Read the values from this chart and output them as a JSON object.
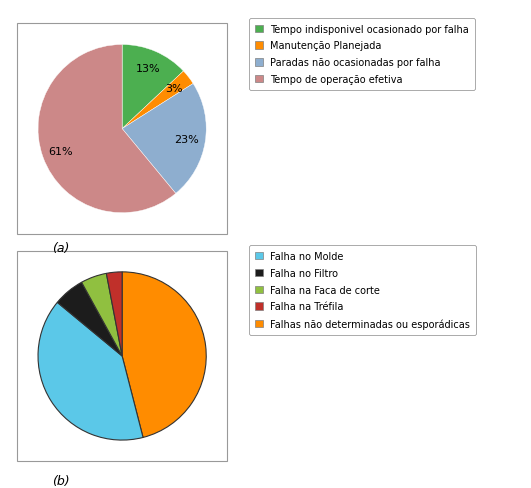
{
  "chart_a": {
    "values": [
      13,
      3,
      23,
      61
    ],
    "colors": [
      "#4CAF50",
      "#FF8C00",
      "#8EAECF",
      "#CC8888"
    ],
    "startangle": 90,
    "counterclock": false,
    "legend_labels": [
      "Tempo indisponivel ocasionado por falha",
      "Manutenção Planejada",
      "Paradas não ocasionadas por falha",
      "Tempo de operação efetiva"
    ]
  },
  "chart_b": {
    "values": [
      46,
      40,
      6,
      5,
      3
    ],
    "colors": [
      "#FF8C00",
      "#5BC8E8",
      "#1C1C1C",
      "#90C040",
      "#C0302A"
    ],
    "startangle": 90,
    "counterclock": false,
    "legend_labels": [
      "Falha no Molde",
      "Falha no Filtro",
      "Falha na Faca de corte",
      "Falha na Tréfila",
      "Falhas não determinadas ou esporádicas"
    ],
    "legend_colors": [
      "#5BC8E8",
      "#1C1C1C",
      "#90C040",
      "#C0302A",
      "#FF8C00"
    ]
  },
  "label_a": "(a)",
  "label_b": "(b)",
  "legend_fontsize": 7.0,
  "autopct_fontsize": 8,
  "figsize": [
    5.31,
    4.89
  ],
  "dpi": 100
}
